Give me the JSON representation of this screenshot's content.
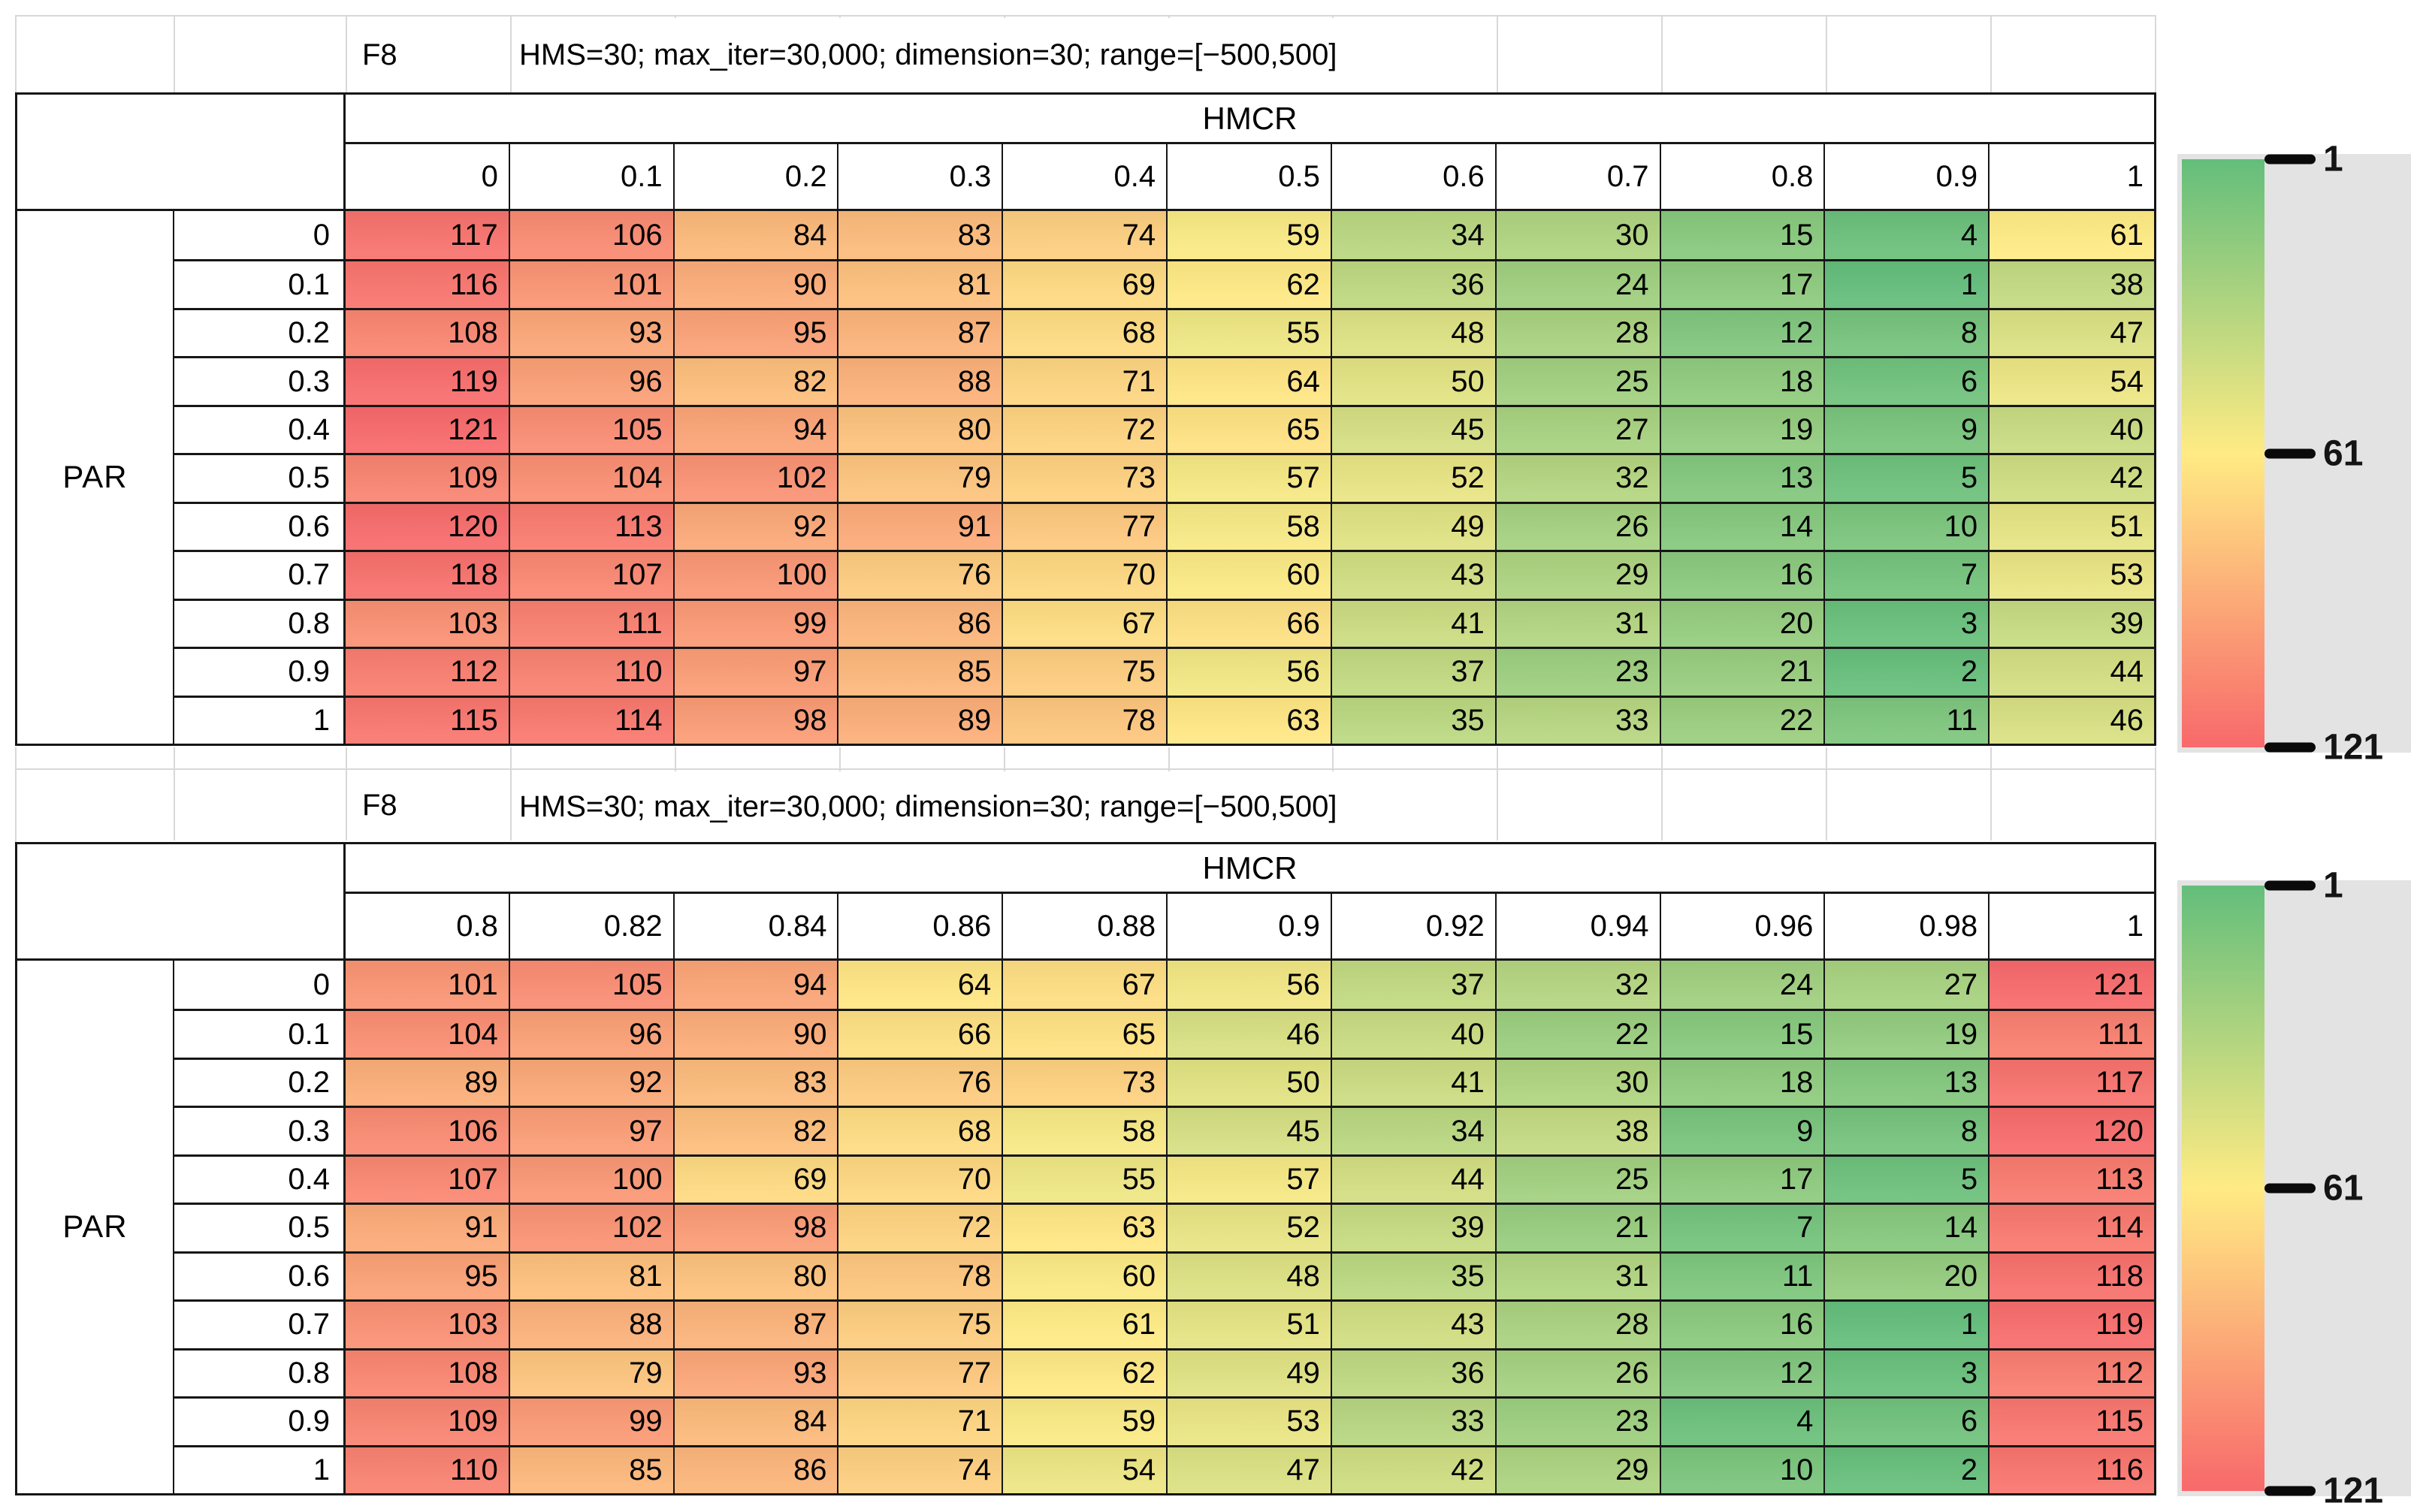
{
  "colors": {
    "scale_min_color": "#63BE7B",
    "scale_mid_color": "#FFEB84",
    "scale_max_color": "#F8696B",
    "legend_panel": "#e3e3e3"
  },
  "chart_data": [
    {
      "type": "heatmap",
      "title": "F8",
      "subtitle": "HMS=30; max_iter=30,000; dimension=30; range=[−500,500]",
      "xlabel": "HMCR",
      "ylabel": "PAR",
      "x": [
        "0",
        "0.1",
        "0.2",
        "0.3",
        "0.4",
        "0.5",
        "0.6",
        "0.7",
        "0.8",
        "0.9",
        "1"
      ],
      "y": [
        "0",
        "0.1",
        "0.2",
        "0.3",
        "0.4",
        "0.5",
        "0.6",
        "0.7",
        "0.8",
        "0.9",
        "1"
      ],
      "values": [
        [
          117,
          106,
          84,
          83,
          74,
          59,
          34,
          30,
          15,
          4,
          61
        ],
        [
          116,
          101,
          90,
          81,
          69,
          62,
          36,
          24,
          17,
          1,
          38
        ],
        [
          108,
          93,
          95,
          87,
          68,
          55,
          48,
          28,
          12,
          8,
          47
        ],
        [
          119,
          96,
          82,
          88,
          71,
          64,
          50,
          25,
          18,
          6,
          54
        ],
        [
          121,
          105,
          94,
          80,
          72,
          65,
          45,
          27,
          19,
          9,
          40
        ],
        [
          109,
          104,
          102,
          79,
          73,
          57,
          52,
          32,
          13,
          5,
          42
        ],
        [
          120,
          113,
          92,
          91,
          77,
          58,
          49,
          26,
          14,
          10,
          51
        ],
        [
          118,
          107,
          100,
          76,
          70,
          60,
          43,
          29,
          16,
          7,
          53
        ],
        [
          103,
          111,
          99,
          86,
          67,
          66,
          41,
          31,
          20,
          3,
          39
        ],
        [
          112,
          110,
          97,
          85,
          75,
          56,
          37,
          23,
          21,
          2,
          44
        ],
        [
          115,
          114,
          98,
          89,
          78,
          63,
          35,
          33,
          22,
          11,
          46
        ]
      ],
      "colorscale": {
        "min": 1,
        "mid": 61,
        "max": 121
      },
      "legend_ticks": [
        "1",
        "61",
        "121"
      ],
      "legend_position": "right"
    },
    {
      "type": "heatmap",
      "title": "F8",
      "subtitle": "HMS=30; max_iter=30,000; dimension=30; range=[−500,500]",
      "xlabel": "HMCR",
      "ylabel": "PAR",
      "x": [
        "0.8",
        "0.82",
        "0.84",
        "0.86",
        "0.88",
        "0.9",
        "0.92",
        "0.94",
        "0.96",
        "0.98",
        "1"
      ],
      "y": [
        "0",
        "0.1",
        "0.2",
        "0.3",
        "0.4",
        "0.5",
        "0.6",
        "0.7",
        "0.8",
        "0.9",
        "1"
      ],
      "values": [
        [
          101,
          105,
          94,
          64,
          67,
          56,
          37,
          32,
          24,
          27,
          121
        ],
        [
          104,
          96,
          90,
          66,
          65,
          46,
          40,
          22,
          15,
          19,
          111
        ],
        [
          89,
          92,
          83,
          76,
          73,
          50,
          41,
          30,
          18,
          13,
          117
        ],
        [
          106,
          97,
          82,
          68,
          58,
          45,
          34,
          38,
          9,
          8,
          120
        ],
        [
          107,
          100,
          69,
          70,
          55,
          57,
          44,
          25,
          17,
          5,
          113
        ],
        [
          91,
          102,
          98,
          72,
          63,
          52,
          39,
          21,
          7,
          14,
          114
        ],
        [
          95,
          81,
          80,
          78,
          60,
          48,
          35,
          31,
          11,
          20,
          118
        ],
        [
          103,
          88,
          87,
          75,
          61,
          51,
          43,
          28,
          16,
          1,
          119
        ],
        [
          108,
          79,
          93,
          77,
          62,
          49,
          36,
          26,
          12,
          3,
          112
        ],
        [
          109,
          99,
          84,
          71,
          59,
          53,
          33,
          23,
          4,
          6,
          115
        ],
        [
          110,
          85,
          86,
          74,
          54,
          47,
          42,
          29,
          10,
          2,
          116
        ]
      ],
      "colorscale": {
        "min": 1,
        "mid": 61,
        "max": 121
      },
      "legend_ticks": [
        "1",
        "61",
        "121"
      ],
      "legend_position": "right"
    }
  ]
}
